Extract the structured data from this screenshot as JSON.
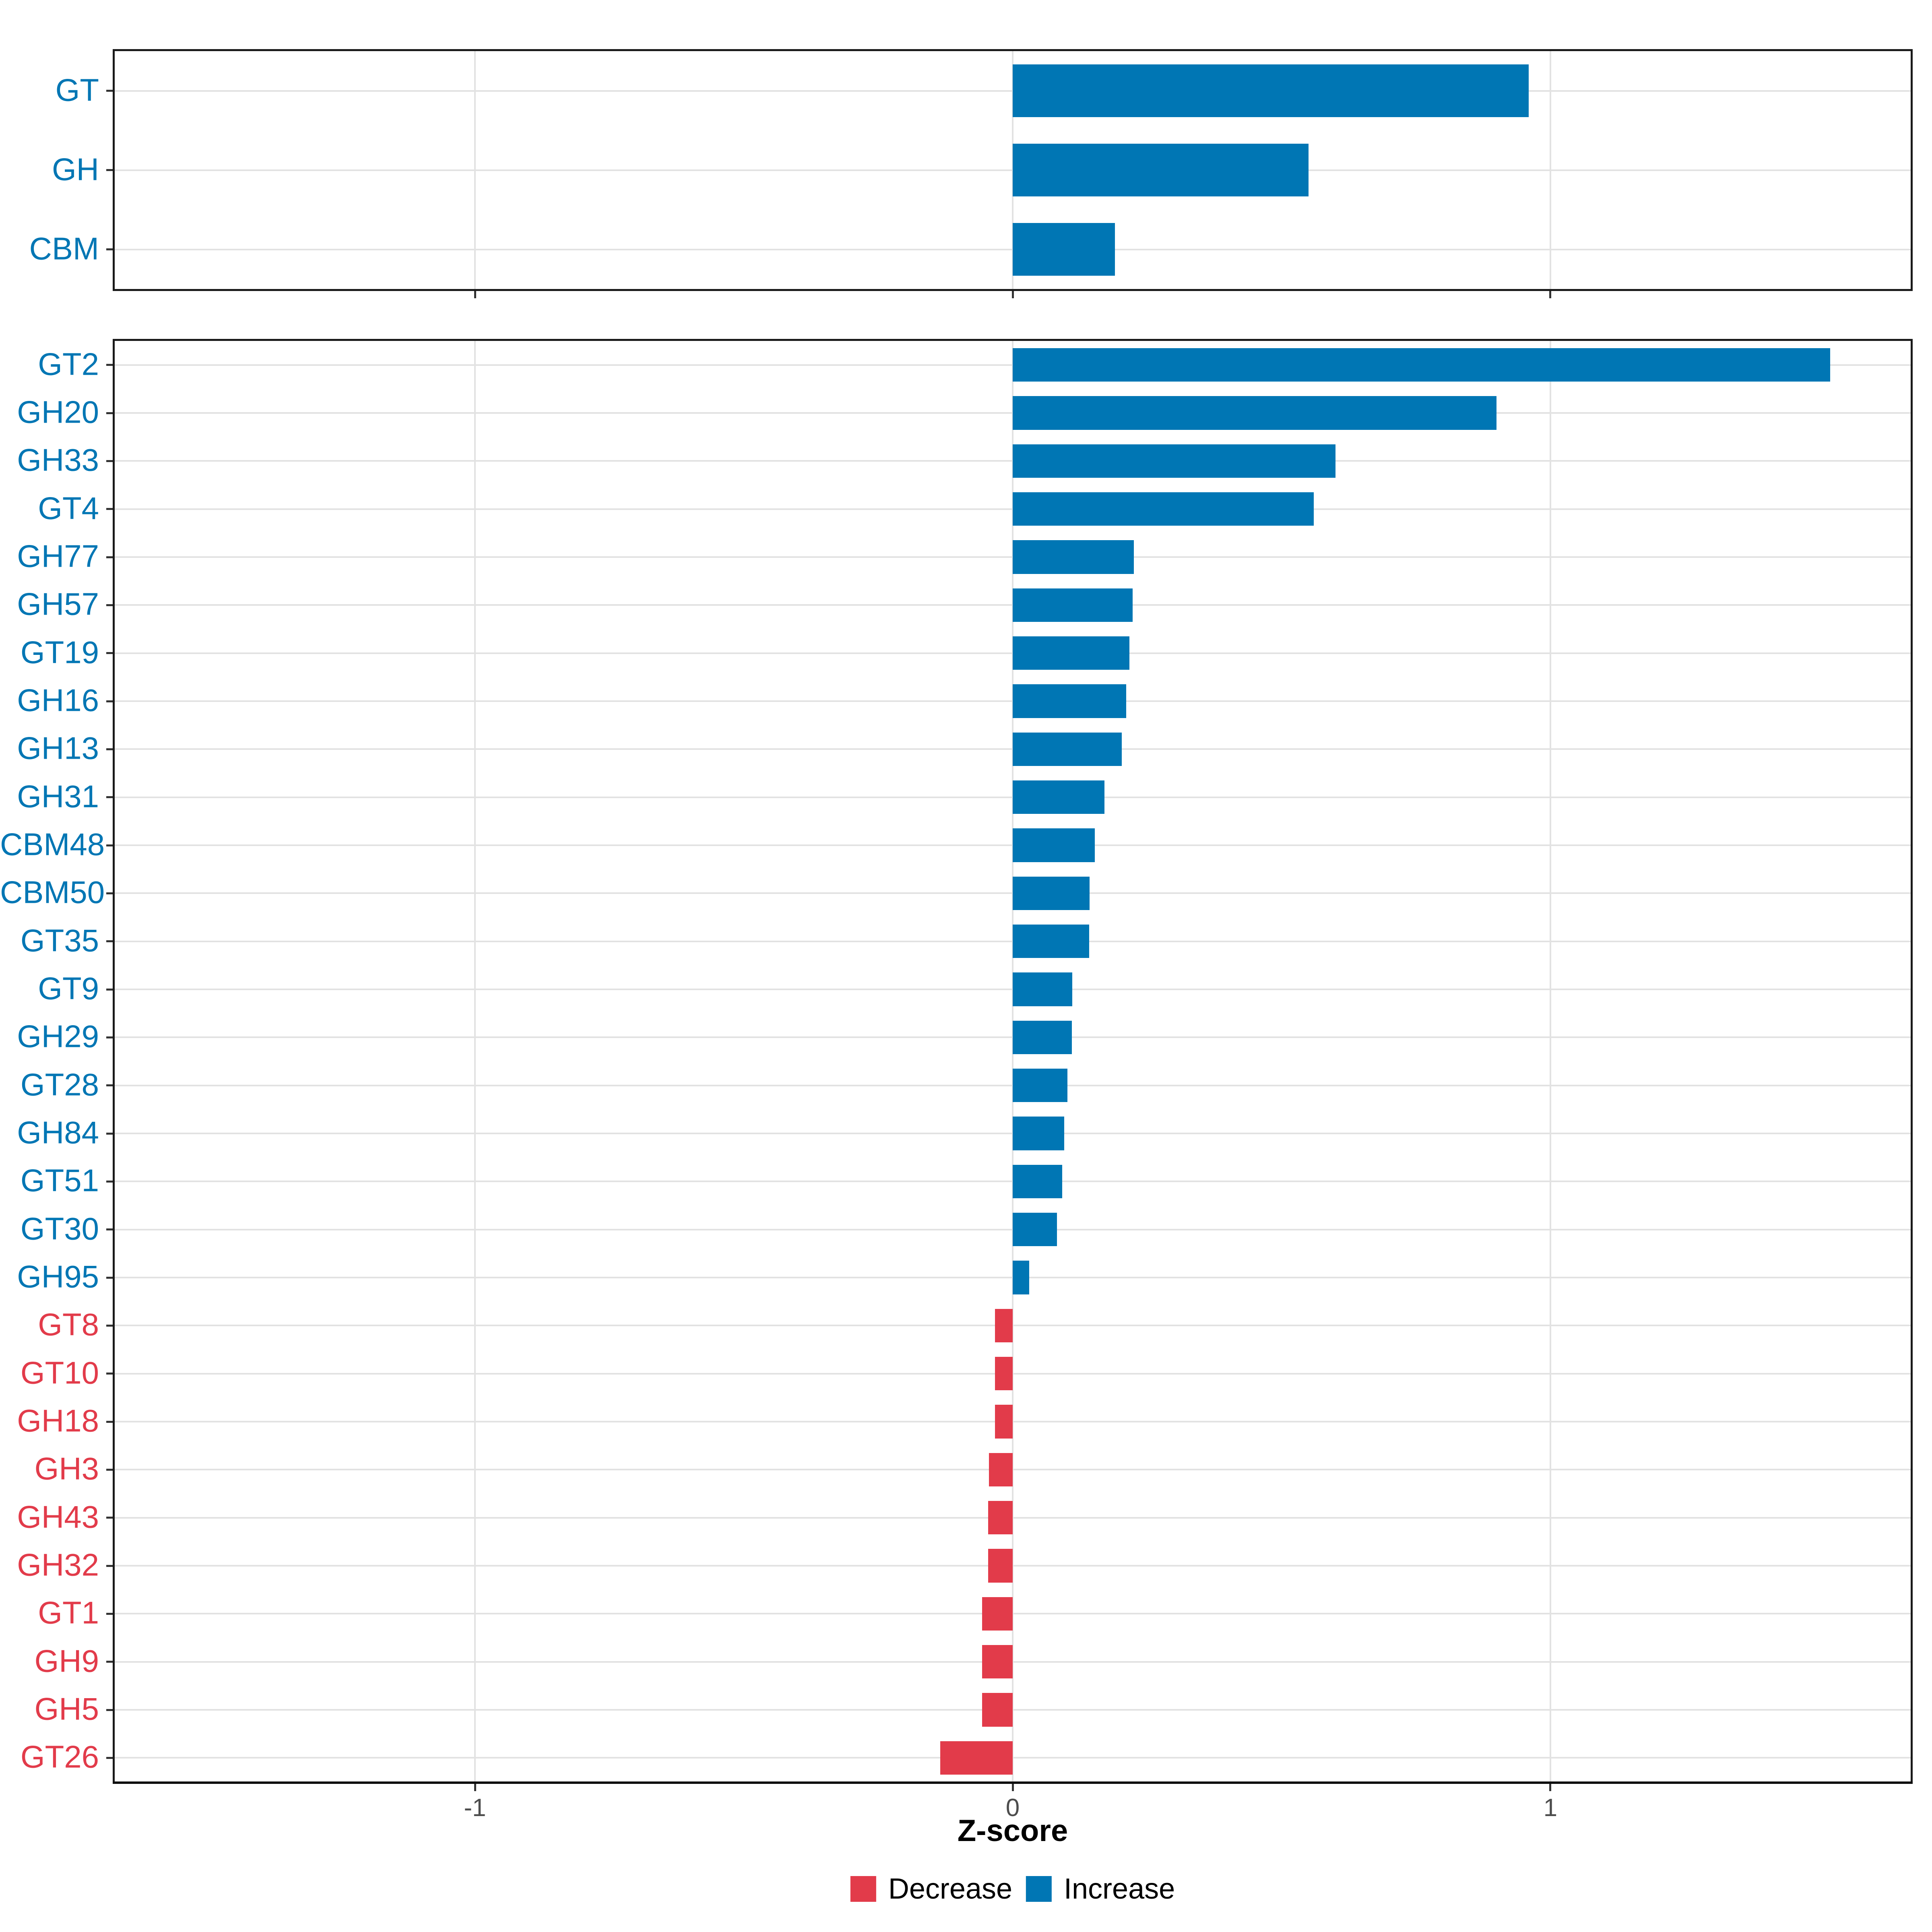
{
  "figure": {
    "background": "#FFFFFF"
  },
  "chart_data": {
    "type": "bar",
    "orientation": "horizontal",
    "xlabel": "Z-score",
    "x_ticks": [
      "-1",
      "0",
      "1"
    ],
    "x_tick_values": [
      -1,
      0,
      1
    ],
    "xlim": [
      -1.67,
      1.67
    ],
    "grid": {
      "show": true,
      "color": "#E2E2E2",
      "vertical_at": [
        -1,
        0,
        1
      ],
      "horizontal": "one line per category row"
    },
    "colors": {
      "increase": "#0076B4",
      "decrease": "#E23B4A",
      "panel_border": "#1A1A1A",
      "tick_label": "#4D4D4D",
      "axis_title": "#000000"
    },
    "legend": {
      "position": "bottom-center",
      "items": [
        {
          "label": "Decrease",
          "color": "#E23B4A"
        },
        {
          "label": "Increase",
          "color": "#0076B4"
        }
      ]
    },
    "panels": [
      {
        "name": "class-summary",
        "categories": [
          "GT",
          "GH",
          "CBM"
        ],
        "values": [
          0.96,
          0.55,
          0.19
        ],
        "directions": [
          "Increase",
          "Increase",
          "Increase"
        ]
      },
      {
        "name": "family-detail",
        "categories": [
          "GT2",
          "GH20",
          "GH33",
          "GT4",
          "GH77",
          "GH57",
          "GT19",
          "GH16",
          "GH13",
          "GH31",
          "CBM48",
          "CBM50",
          "GT35",
          "GT9",
          "GH29",
          "GT28",
          "GH84",
          "GT51",
          "GT30",
          "GH95",
          "GT8",
          "GT10",
          "GH18",
          "GH3",
          "GH43",
          "GH32",
          "GT1",
          "GH9",
          "GH5",
          "GT26"
        ],
        "values": [
          1.52,
          0.9,
          0.6,
          0.56,
          0.225,
          0.223,
          0.217,
          0.211,
          0.203,
          0.171,
          0.153,
          0.143,
          0.142,
          0.111,
          0.11,
          0.102,
          0.096,
          0.092,
          0.082,
          0.031,
          -0.033,
          -0.033,
          -0.033,
          -0.044,
          -0.046,
          -0.046,
          -0.057,
          -0.057,
          -0.057,
          -0.135
        ],
        "directions": [
          "Increase",
          "Increase",
          "Increase",
          "Increase",
          "Increase",
          "Increase",
          "Increase",
          "Increase",
          "Increase",
          "Increase",
          "Increase",
          "Increase",
          "Increase",
          "Increase",
          "Increase",
          "Increase",
          "Increase",
          "Increase",
          "Increase",
          "Increase",
          "Decrease",
          "Decrease",
          "Decrease",
          "Decrease",
          "Decrease",
          "Decrease",
          "Decrease",
          "Decrease",
          "Decrease",
          "Decrease"
        ]
      }
    ]
  }
}
